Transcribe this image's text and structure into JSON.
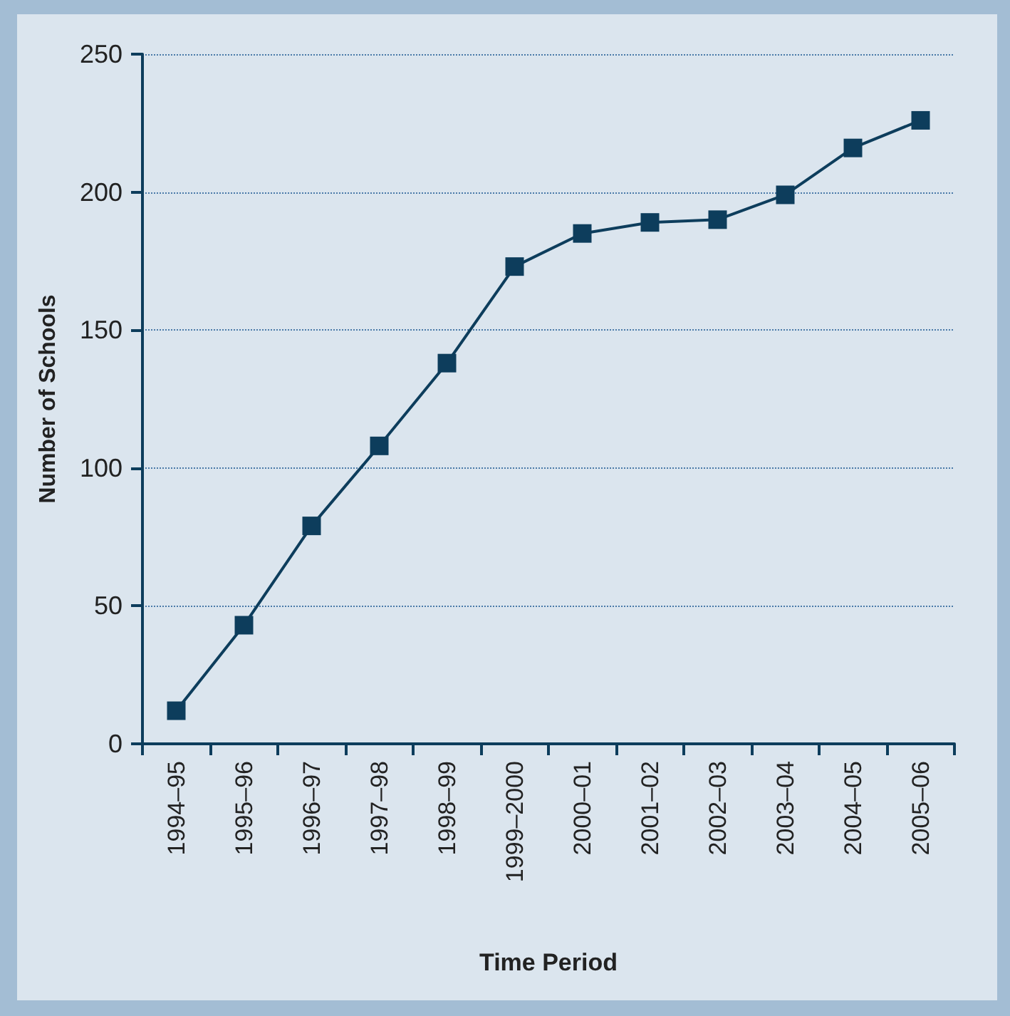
{
  "chart_data": {
    "type": "line",
    "xlabel": "Time Period",
    "ylabel": "Number of Schools",
    "categories": [
      "1994–95",
      "1995–96",
      "1996–97",
      "1997–98",
      "1998–99",
      "1999–2000",
      "2000–01",
      "2001–02",
      "2002–03",
      "2003–04",
      "2004–05",
      "2005–06"
    ],
    "series": [
      {
        "color": "#0d3d5c",
        "values": [
          12,
          43,
          79,
          108,
          138,
          173,
          185,
          189,
          190,
          199,
          216,
          226
        ]
      }
    ],
    "ylim": [
      0,
      250
    ],
    "yticks": [
      0,
      50,
      100,
      150,
      200,
      250
    ],
    "grid": "y",
    "marker": "square",
    "line_style": "solid"
  }
}
